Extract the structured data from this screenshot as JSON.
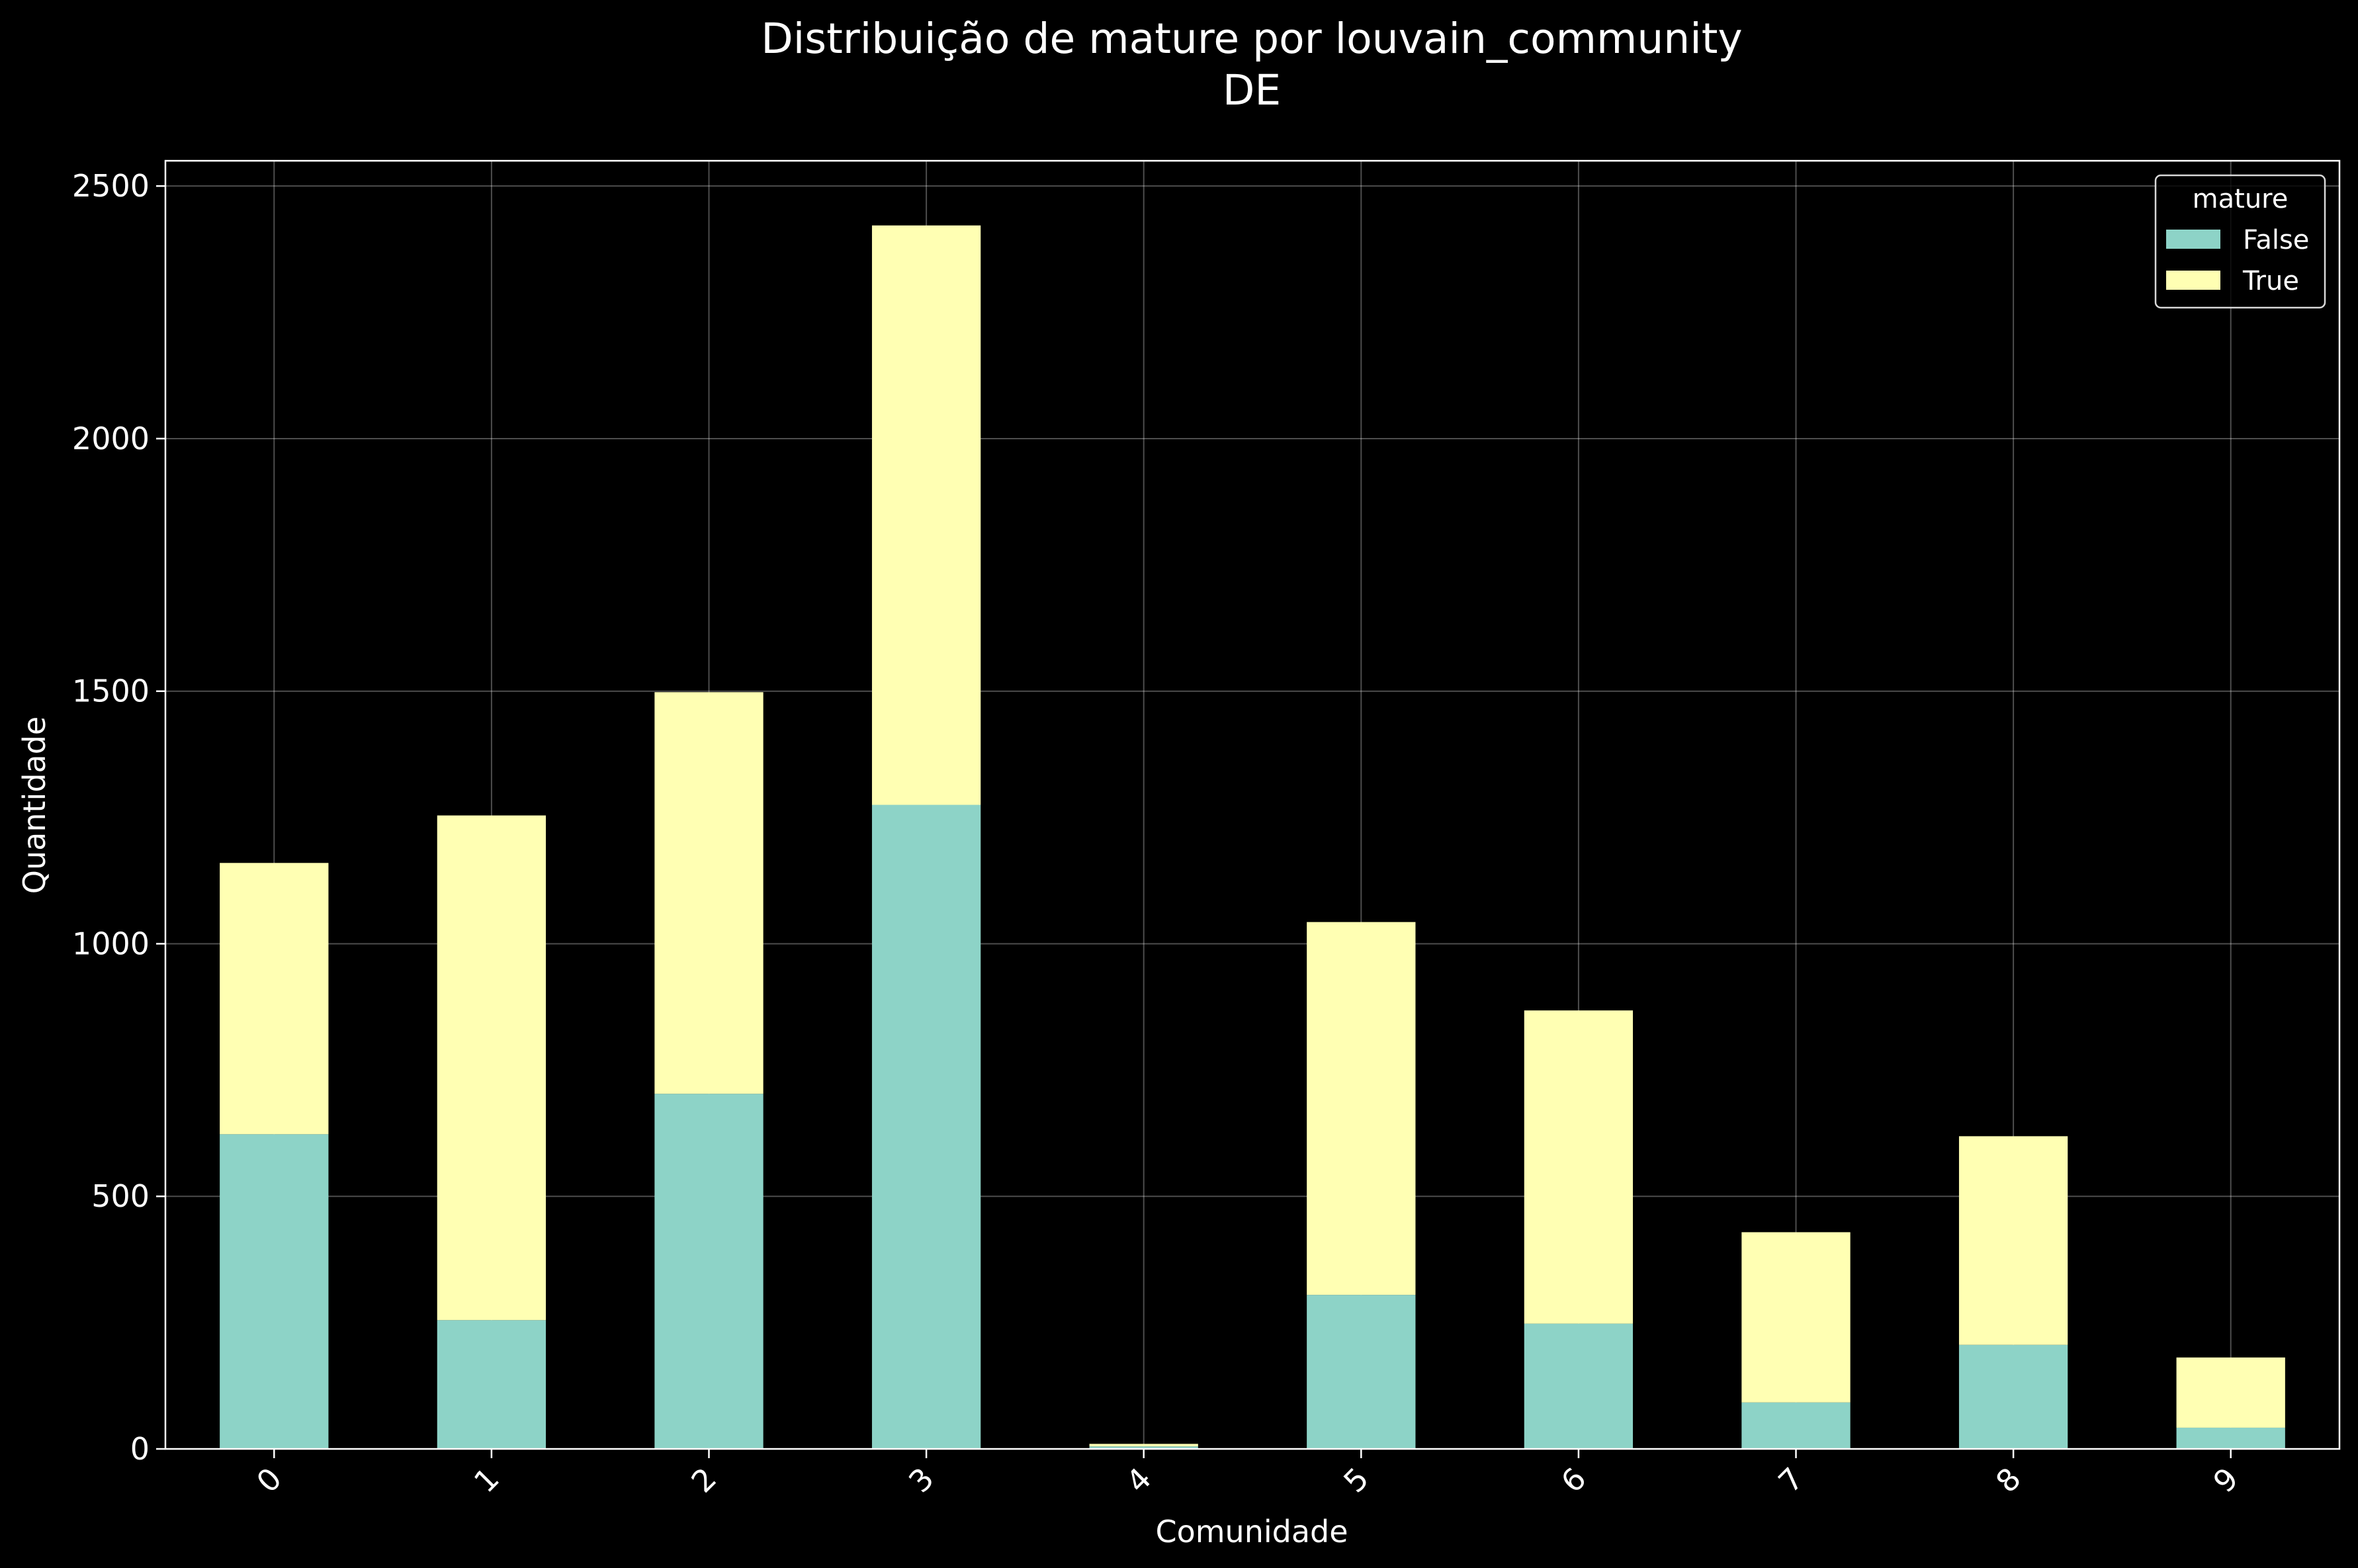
{
  "chart_data": {
    "type": "bar",
    "stacked": true,
    "title": "Distribuição de mature por louvain_community",
    "subtitle": "DE",
    "xlabel": "Comunidade",
    "ylabel": "Quantidade",
    "categories": [
      "0",
      "1",
      "2",
      "3",
      "4",
      "5",
      "6",
      "7",
      "8",
      "9"
    ],
    "series": [
      {
        "name": "False",
        "color": "#8dd3c7",
        "values": [
          623,
          255,
          703,
          1275,
          5,
          305,
          248,
          92,
          206,
          42
        ]
      },
      {
        "name": "True",
        "color": "#ffffb3",
        "values": [
          537,
          999,
          795,
          1147,
          5,
          738,
          620,
          337,
          413,
          139
        ]
      }
    ],
    "ylim": [
      0,
      2550
    ],
    "yticks": [
      0,
      500,
      1000,
      1500,
      2000,
      2500
    ],
    "grid": true,
    "legend": {
      "title": "mature",
      "position": "top-right"
    }
  }
}
